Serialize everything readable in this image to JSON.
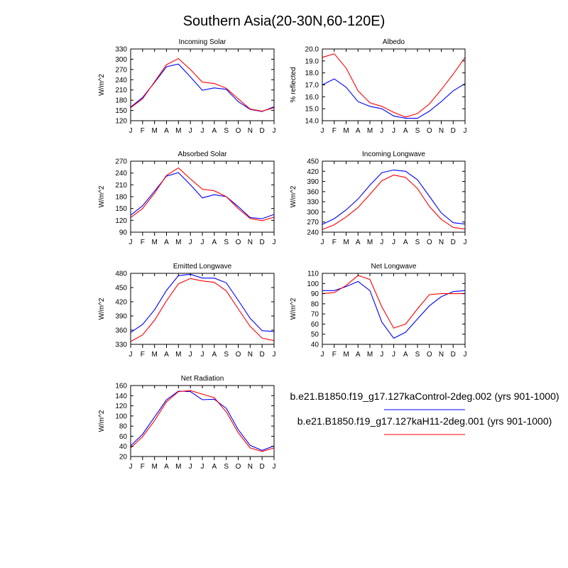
{
  "figure": {
    "title": "Southern Asia(20-30N,60-120E)",
    "months": [
      "J",
      "F",
      "M",
      "A",
      "M",
      "J",
      "J",
      "A",
      "S",
      "O",
      "N",
      "D",
      "J"
    ],
    "series_colors": {
      "control": "#0000ff",
      "h11": "#ff0000"
    },
    "legend": [
      {
        "key": "control",
        "label": "b.e21.B1850.f19_g17.127kaControl-2deg.002 (yrs 901-1000)",
        "color": "#0000ff"
      },
      {
        "key": "h11",
        "label": "b.e21.B1850.f19_g17.127kaH11-2deg.001 (yrs 901-1000)",
        "color": "#ff0000"
      }
    ]
  },
  "chart_data": [
    {
      "type": "line",
      "title": "Incoming Solar",
      "ylabel": "W/m^2",
      "ylim": [
        120,
        330
      ],
      "yticks": [
        120,
        150,
        180,
        210,
        240,
        270,
        300,
        330
      ],
      "x": [
        "J",
        "F",
        "M",
        "A",
        "M",
        "J",
        "J",
        "A",
        "S",
        "O",
        "N",
        "D",
        "J"
      ],
      "series": [
        {
          "name": "b.e21.B1850.f19_g17.127kaControl-2deg.002 (yrs 901-1000)",
          "color": "#0000ff",
          "values": [
            160,
            188,
            232,
            278,
            286,
            248,
            209,
            216,
            212,
            176,
            153,
            147,
            161
          ]
        },
        {
          "name": "b.e21.B1850.f19_g17.127kaH11-2deg.001 (yrs 901-1000)",
          "color": "#ff0000",
          "values": [
            158,
            184,
            234,
            284,
            302,
            270,
            233,
            229,
            215,
            184,
            154,
            148,
            158
          ]
        }
      ]
    },
    {
      "type": "line",
      "title": "Albedo",
      "ylabel": "% reflected",
      "ylim": [
        14.0,
        20.0
      ],
      "yticks": [
        "14.0",
        "15.0",
        "16.0",
        "17.0",
        "18.0",
        "19.0",
        "20.0"
      ],
      "x": [
        "J",
        "F",
        "M",
        "A",
        "M",
        "J",
        "J",
        "A",
        "S",
        "O",
        "N",
        "D",
        "J"
      ],
      "series": [
        {
          "name": "b.e21.B1850.f19_g17.127kaControl-2deg.002 (yrs 901-1000)",
          "color": "#0000ff",
          "values": [
            17.0,
            17.5,
            16.8,
            15.6,
            15.2,
            15.0,
            14.4,
            14.2,
            14.2,
            14.8,
            15.6,
            16.5,
            17.1
          ]
        },
        {
          "name": "b.e21.B1850.f19_g17.127kaH11-2deg.001 (yrs 901-1000)",
          "color": "#ff0000",
          "values": [
            19.3,
            19.6,
            18.4,
            16.5,
            15.5,
            15.2,
            14.7,
            14.3,
            14.6,
            15.4,
            16.6,
            17.9,
            19.3
          ]
        }
      ]
    },
    {
      "type": "line",
      "title": "Absorbed Solar",
      "ylabel": "W/m^2",
      "ylim": [
        90,
        270
      ],
      "yticks": [
        90,
        120,
        150,
        180,
        210,
        240,
        270
      ],
      "x": [
        "J",
        "F",
        "M",
        "A",
        "M",
        "J",
        "J",
        "A",
        "S",
        "O",
        "N",
        "D",
        "J"
      ],
      "series": [
        {
          "name": "b.e21.B1850.f19_g17.127kaControl-2deg.002 (yrs 901-1000)",
          "color": "#0000ff",
          "values": [
            133,
            157,
            194,
            232,
            241,
            210,
            177,
            185,
            180,
            155,
            127,
            124,
            135
          ]
        },
        {
          "name": "b.e21.B1850.f19_g17.127kaH11-2deg.001 (yrs 901-1000)",
          "color": "#ff0000",
          "values": [
            127,
            150,
            189,
            234,
            253,
            225,
            199,
            195,
            180,
            150,
            125,
            119,
            128
          ]
        }
      ]
    },
    {
      "type": "line",
      "title": "Incoming Longwave",
      "ylabel": "W/m^2",
      "ylim": [
        240,
        450
      ],
      "yticks": [
        240,
        270,
        300,
        330,
        360,
        390,
        420,
        450
      ],
      "x": [
        "J",
        "F",
        "M",
        "A",
        "M",
        "J",
        "J",
        "A",
        "S",
        "O",
        "N",
        "D",
        "J"
      ],
      "series": [
        {
          "name": "b.e21.B1850.f19_g17.127kaControl-2deg.002 (yrs 901-1000)",
          "color": "#0000ff",
          "values": [
            263,
            280,
            306,
            338,
            379,
            416,
            424,
            420,
            395,
            346,
            297,
            268,
            264
          ]
        },
        {
          "name": "b.e21.B1850.f19_g17.127kaH11-2deg.001 (yrs 901-1000)",
          "color": "#ff0000",
          "values": [
            248,
            262,
            285,
            313,
            352,
            392,
            409,
            402,
            369,
            316,
            278,
            254,
            249
          ]
        }
      ]
    },
    {
      "type": "line",
      "title": "Emitted Longwave",
      "ylabel": "W/m^2",
      "ylim": [
        330,
        480
      ],
      "yticks": [
        330,
        360,
        390,
        420,
        450,
        480
      ],
      "x": [
        "J",
        "F",
        "M",
        "A",
        "M",
        "J",
        "J",
        "A",
        "S",
        "O",
        "N",
        "D",
        "J"
      ],
      "series": [
        {
          "name": "b.e21.B1850.f19_g17.127kaControl-2deg.002 (yrs 901-1000)",
          "color": "#0000ff",
          "values": [
            355,
            372,
            403,
            444,
            475,
            478,
            470,
            470,
            460,
            423,
            385,
            359,
            357
          ]
        },
        {
          "name": "b.e21.B1850.f19_g17.127kaH11-2deg.001 (yrs 901-1000)",
          "color": "#ff0000",
          "values": [
            336,
            350,
            381,
            422,
            458,
            469,
            464,
            461,
            443,
            405,
            368,
            343,
            338
          ]
        }
      ]
    },
    {
      "type": "line",
      "title": "Net Longwave",
      "ylabel": "W/m^2",
      "ylim": [
        40,
        110
      ],
      "yticks": [
        40,
        50,
        60,
        70,
        80,
        90,
        100,
        110
      ],
      "x": [
        "J",
        "F",
        "M",
        "A",
        "M",
        "J",
        "J",
        "A",
        "S",
        "O",
        "N",
        "D",
        "J"
      ],
      "series": [
        {
          "name": "b.e21.B1850.f19_g17.127kaControl-2deg.002 (yrs 901-1000)",
          "color": "#0000ff",
          "values": [
            93,
            93,
            97,
            102,
            93,
            62,
            46,
            52,
            65,
            78,
            87,
            92,
            93
          ]
        },
        {
          "name": "b.e21.B1850.f19_g17.127kaH11-2deg.001 (yrs 901-1000)",
          "color": "#ff0000",
          "values": [
            90,
            91,
            98,
            108,
            104,
            77,
            56,
            60,
            75,
            89,
            90,
            90,
            90
          ]
        }
      ]
    },
    {
      "type": "line",
      "title": "Net Radiation",
      "ylabel": "W/m^2",
      "ylim": [
        20,
        160
      ],
      "yticks": [
        20,
        40,
        60,
        80,
        100,
        120,
        140,
        160
      ],
      "x": [
        "J",
        "F",
        "M",
        "A",
        "M",
        "J",
        "J",
        "A",
        "S",
        "O",
        "N",
        "D",
        "J"
      ],
      "series": [
        {
          "name": "b.e21.B1850.f19_g17.127kaControl-2deg.002 (yrs 901-1000)",
          "color": "#0000ff",
          "values": [
            41,
            64,
            98,
            132,
            149,
            148,
            132,
            133,
            115,
            73,
            42,
            32,
            41
          ]
        },
        {
          "name": "b.e21.B1850.f19_g17.127kaH11-2deg.001 (yrs 901-1000)",
          "color": "#ff0000",
          "values": [
            37,
            59,
            91,
            128,
            148,
            150,
            143,
            136,
            108,
            67,
            37,
            30,
            37
          ]
        }
      ]
    }
  ]
}
